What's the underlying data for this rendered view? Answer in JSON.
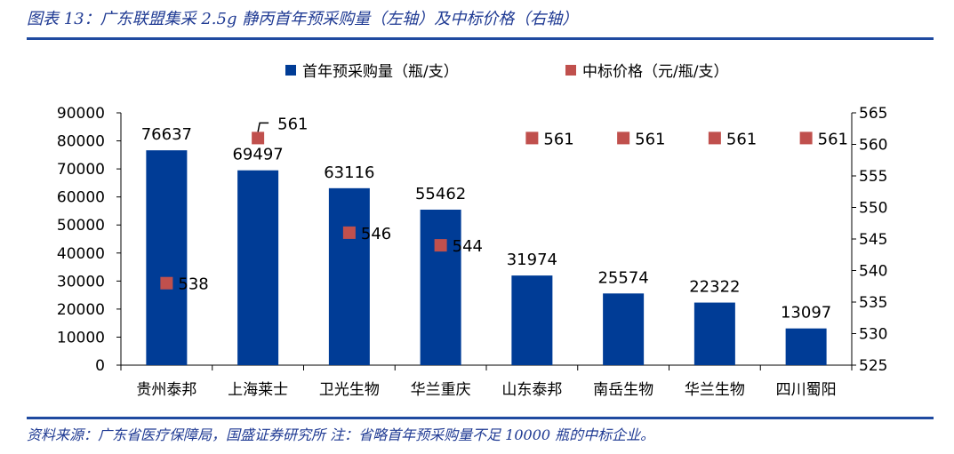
{
  "title": "图表 13：广东联盟集采 2.5g 静丙首年预采购量（左轴）及中标价格（右轴）",
  "source": "资料来源：广东省医疗保障局，国盛证券研究所 注：省略首年预采购量不足 10000 瓶的中标企业。",
  "colors": {
    "bar": "#003c96",
    "marker": "#c0504d",
    "rule": "#1f4aa0",
    "text": "#1f3a93"
  },
  "chart_data": {
    "type": "bar",
    "categories": [
      "贵州泰邦",
      "上海莱士",
      "卫光生物",
      "华兰重庆",
      "山东泰邦",
      "南岳生物",
      "华兰生物",
      "四川蜀阳"
    ],
    "series": [
      {
        "name": "首年预采购量（瓶/支）",
        "type": "bar",
        "axis": "left",
        "values": [
          76637,
          69497,
          63116,
          55462,
          31974,
          25574,
          22322,
          13097
        ]
      },
      {
        "name": "中标价格（元/瓶/支）",
        "type": "scatter",
        "axis": "right",
        "values": [
          538,
          561,
          546,
          544,
          561,
          561,
          561,
          561
        ]
      }
    ],
    "y_left": {
      "min": 0,
      "max": 90000,
      "step": 10000,
      "ticks": [
        "0",
        "10000",
        "20000",
        "30000",
        "40000",
        "50000",
        "60000",
        "70000",
        "80000",
        "90000"
      ]
    },
    "y_right": {
      "min": 525,
      "max": 565,
      "step": 5,
      "ticks": [
        "525",
        "530",
        "535",
        "540",
        "545",
        "550",
        "555",
        "560",
        "565"
      ]
    },
    "legend_position": "top",
    "grid": false
  }
}
